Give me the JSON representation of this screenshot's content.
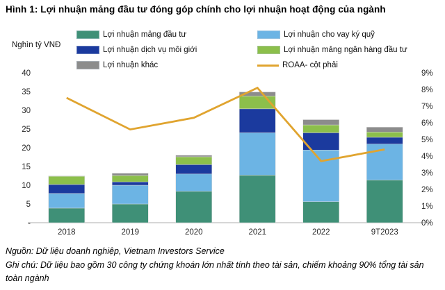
{
  "title": "Hình 1: Lợi nhuận mảng đầu tư đóng góp chính cho lợi nhuận hoạt động của ngành",
  "legend": {
    "columns": [
      [
        {
          "label": "Lợi nhuận mảng đầu tư",
          "color": "#3F9077",
          "shape": "box"
        },
        {
          "label": "Lợi nhuận dịch vụ môi giới",
          "color": "#1B3A9E",
          "shape": "box"
        },
        {
          "label": "Lợi nhuận khác",
          "color": "#8C8C8C",
          "shape": "box"
        }
      ],
      [
        {
          "label": "Lợi nhuận cho vay ký quỹ",
          "color": "#6CB4E4",
          "shape": "box"
        },
        {
          "label": "Lợi nhuận mảng ngân hàng đầu tư",
          "color": "#8CBF4B",
          "shape": "box"
        },
        {
          "label": "ROAA- cột phải",
          "color": "#E0A42F",
          "shape": "line"
        }
      ]
    ]
  },
  "chart_data": {
    "type": "bar",
    "stacked": true,
    "title": "Hình 1: Lợi nhuận mảng đầu tư đóng góp chính cho lợi nhuận hoạt động của ngành",
    "categories": [
      "2018",
      "2019",
      "2020",
      "2021",
      "2022",
      "9T2023"
    ],
    "series": [
      {
        "name": "Lợi nhuận mảng đầu tư",
        "color": "#3F9077",
        "values": [
          3.9,
          5.0,
          8.4,
          12.7,
          5.6,
          11.4
        ]
      },
      {
        "name": "Lợi nhuận cho vay ký quỹ",
        "color": "#6CB4E4",
        "values": [
          3.9,
          5.0,
          4.6,
          11.3,
          13.8,
          9.6
        ]
      },
      {
        "name": "Lợi nhuận dịch vụ môi giới",
        "color": "#1B3A9E",
        "values": [
          2.4,
          0.9,
          2.5,
          6.4,
          4.6,
          1.8
        ]
      },
      {
        "name": "Lợi nhuận mảng ngân hàng đầu tư",
        "color": "#8CBF4B",
        "values": [
          2.2,
          1.7,
          2.1,
          3.4,
          2.1,
          1.4
        ]
      },
      {
        "name": "Lợi nhuận khác",
        "color": "#8C8C8C",
        "values": [
          0.1,
          0.6,
          0.4,
          1.1,
          1.4,
          1.3
        ]
      }
    ],
    "line_series": {
      "name": "ROAA- cột phải",
      "color": "#E0A42F",
      "axis": "right",
      "values": [
        7.5,
        5.6,
        6.3,
        8.1,
        3.7,
        4.4
      ]
    },
    "left_axis": {
      "label": "Nghìn tỷ VNĐ",
      "min": 0,
      "max": 40,
      "step": 5,
      "tick_labels_top_to_bottom": [
        "40",
        "35",
        "30",
        "25",
        "20",
        "15",
        "10",
        "5",
        "-"
      ]
    },
    "right_axis": {
      "min": 0,
      "max": 9,
      "step": 1,
      "suffix": "%",
      "tick_labels_top_to_bottom": [
        "9%",
        "8%",
        "7%",
        "6%",
        "5%",
        "4%",
        "3%",
        "2%",
        "1%",
        "0%"
      ]
    },
    "grid": false,
    "legend_position": "top"
  },
  "footer": {
    "source": "Nguồn: Dữ liệu doanh nghiệp, Vietnam Investors Service",
    "note": "Ghi chú: Dữ liệu bao gồm 30 công ty chứng khoán lớn nhất tính theo tài sản, chiếm khoảng 90% tổng tài sản toàn ngành"
  }
}
